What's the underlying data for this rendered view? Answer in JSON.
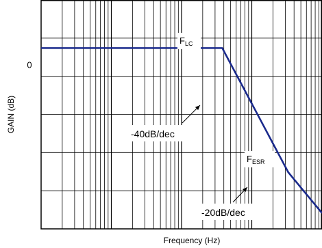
{
  "chart_data": {
    "type": "line",
    "xlabel": "Frequency (Hz)",
    "ylabel": "GAIN (dB)",
    "x_scale": "log",
    "x_decades": 4,
    "y_divisions": 6,
    "grid": true,
    "y_tick_labels": [
      {
        "label": "0",
        "y": 0
      }
    ],
    "ylim": [
      -4.25,
      1.7
    ],
    "xlim": [
      0,
      4
    ],
    "series": [
      {
        "color": "#1a2a8c",
        "points": [
          {
            "x": 0.0,
            "y": 0.45
          },
          {
            "x": 2.58,
            "y": 0.45
          },
          {
            "x": 3.52,
            "y": -2.78
          },
          {
            "x": 4.0,
            "y": -3.84
          }
        ]
      }
    ],
    "annotations": [
      {
        "id": "flc",
        "main": "F",
        "sub": "LC",
        "x": 2.58,
        "y": 0.45
      },
      {
        "id": "fesr",
        "main": "F",
        "sub": "ESR",
        "x": 3.52,
        "y": -2.78
      },
      {
        "id": "slope1",
        "text": "-40dB/dec"
      },
      {
        "id": "slope2",
        "text": "-20dB/dec"
      }
    ]
  }
}
